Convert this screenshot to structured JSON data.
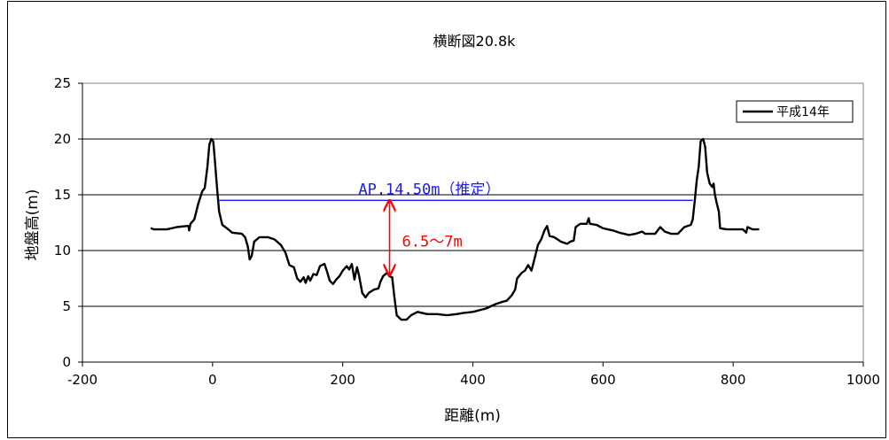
{
  "chart_data": {
    "type": "line",
    "title": "横断図20.8k",
    "xlabel": "距離(m)",
    "ylabel": "地盤高(m)",
    "xlim": [
      -200,
      1000
    ],
    "ylim": [
      0,
      25
    ],
    "x_ticks": [
      -200,
      0,
      200,
      400,
      600,
      800,
      1000
    ],
    "y_ticks": [
      0,
      5,
      10,
      15,
      20,
      25
    ],
    "grid": "horizontal",
    "legend": {
      "placement": "top-right",
      "entries": [
        "平成14年"
      ]
    },
    "series": [
      {
        "name": "平成14年",
        "color": "#000000",
        "points": [
          [
            -95,
            12.0
          ],
          [
            -90,
            11.9
          ],
          [
            -70,
            11.9
          ],
          [
            -55,
            12.1
          ],
          [
            -40,
            12.2
          ],
          [
            -37,
            12.2
          ],
          [
            -36,
            11.8
          ],
          [
            -34,
            12.4
          ],
          [
            -28,
            12.8
          ],
          [
            -22,
            14.2
          ],
          [
            -16,
            15.3
          ],
          [
            -12,
            15.6
          ],
          [
            -8,
            17.5
          ],
          [
            -5,
            19.5
          ],
          [
            -2,
            20.0
          ],
          [
            1,
            19.8
          ],
          [
            3,
            18.5
          ],
          [
            7,
            15.5
          ],
          [
            10,
            13.5
          ],
          [
            15,
            12.3
          ],
          [
            22,
            12.0
          ],
          [
            30,
            11.6
          ],
          [
            45,
            11.5
          ],
          [
            50,
            11.2
          ],
          [
            54,
            10.4
          ],
          [
            57,
            9.2
          ],
          [
            60,
            9.5
          ],
          [
            64,
            10.8
          ],
          [
            72,
            11.2
          ],
          [
            85,
            11.2
          ],
          [
            95,
            11.0
          ],
          [
            105,
            10.5
          ],
          [
            112,
            9.8
          ],
          [
            118,
            8.7
          ],
          [
            125,
            8.5
          ],
          [
            130,
            7.5
          ],
          [
            135,
            7.2
          ],
          [
            140,
            7.6
          ],
          [
            143,
            7.1
          ],
          [
            147,
            7.7
          ],
          [
            150,
            7.3
          ],
          [
            155,
            7.9
          ],
          [
            160,
            7.8
          ],
          [
            165,
            8.6
          ],
          [
            172,
            8.8
          ],
          [
            176,
            8.1
          ],
          [
            180,
            7.3
          ],
          [
            185,
            7.0
          ],
          [
            190,
            7.4
          ],
          [
            195,
            7.7
          ],
          [
            200,
            8.2
          ],
          [
            206,
            8.6
          ],
          [
            210,
            8.3
          ],
          [
            214,
            8.8
          ],
          [
            218,
            7.4
          ],
          [
            222,
            8.5
          ],
          [
            225,
            7.8
          ],
          [
            230,
            6.2
          ],
          [
            235,
            5.8
          ],
          [
            240,
            6.2
          ],
          [
            248,
            6.5
          ],
          [
            255,
            6.6
          ],
          [
            258,
            7.2
          ],
          [
            262,
            7.7
          ],
          [
            268,
            8.0
          ],
          [
            272,
            7.7
          ],
          [
            276,
            7.6
          ],
          [
            279,
            6.0
          ],
          [
            283,
            4.2
          ],
          [
            290,
            3.8
          ],
          [
            298,
            3.8
          ],
          [
            305,
            4.2
          ],
          [
            315,
            4.5
          ],
          [
            330,
            4.3
          ],
          [
            345,
            4.3
          ],
          [
            360,
            4.2
          ],
          [
            375,
            4.3
          ],
          [
            385,
            4.4
          ],
          [
            400,
            4.5
          ],
          [
            420,
            4.8
          ],
          [
            435,
            5.2
          ],
          [
            445,
            5.4
          ],
          [
            452,
            5.5
          ],
          [
            460,
            6.0
          ],
          [
            465,
            6.5
          ],
          [
            468,
            7.5
          ],
          [
            475,
            8.0
          ],
          [
            480,
            8.2
          ],
          [
            485,
            8.7
          ],
          [
            490,
            8.2
          ],
          [
            495,
            9.3
          ],
          [
            500,
            10.5
          ],
          [
            505,
            11.0
          ],
          [
            510,
            11.8
          ],
          [
            514,
            12.2
          ],
          [
            518,
            11.3
          ],
          [
            525,
            11.2
          ],
          [
            535,
            10.8
          ],
          [
            545,
            10.6
          ],
          [
            550,
            10.8
          ],
          [
            555,
            10.9
          ],
          [
            558,
            12.1
          ],
          [
            565,
            12.4
          ],
          [
            575,
            12.4
          ],
          [
            578,
            12.9
          ],
          [
            580,
            12.4
          ],
          [
            590,
            12.3
          ],
          [
            600,
            12.0
          ],
          [
            615,
            11.8
          ],
          [
            625,
            11.6
          ],
          [
            640,
            11.4
          ],
          [
            650,
            11.5
          ],
          [
            660,
            11.7
          ],
          [
            665,
            11.5
          ],
          [
            680,
            11.5
          ],
          [
            688,
            12.1
          ],
          [
            695,
            11.7
          ],
          [
            705,
            11.5
          ],
          [
            715,
            11.5
          ],
          [
            725,
            12.1
          ],
          [
            735,
            12.3
          ],
          [
            738,
            12.8
          ],
          [
            741,
            14.5
          ],
          [
            744,
            16.3
          ],
          [
            747,
            17.5
          ],
          [
            750,
            19.8
          ],
          [
            754,
            20.0
          ],
          [
            757,
            19.3
          ],
          [
            760,
            17.0
          ],
          [
            764,
            16.0
          ],
          [
            768,
            15.7
          ],
          [
            770,
            16.0
          ],
          [
            772,
            15.0
          ],
          [
            775,
            14.2
          ],
          [
            778,
            13.5
          ],
          [
            780,
            12.0
          ],
          [
            790,
            11.9
          ],
          [
            815,
            11.9
          ],
          [
            820,
            11.6
          ],
          [
            822,
            12.1
          ],
          [
            830,
            11.9
          ],
          [
            840,
            11.9
          ]
        ]
      }
    ],
    "annotations": [
      {
        "type": "hline",
        "label": "AP.14.50m（推定）",
        "y": 14.5,
        "x_range": [
          10,
          738
        ],
        "color": "#1a1aff"
      },
      {
        "type": "double-arrow",
        "label": "6.5～7m",
        "x": 272,
        "y_range": [
          7.8,
          14.5
        ],
        "color": "#ff0000"
      }
    ]
  }
}
